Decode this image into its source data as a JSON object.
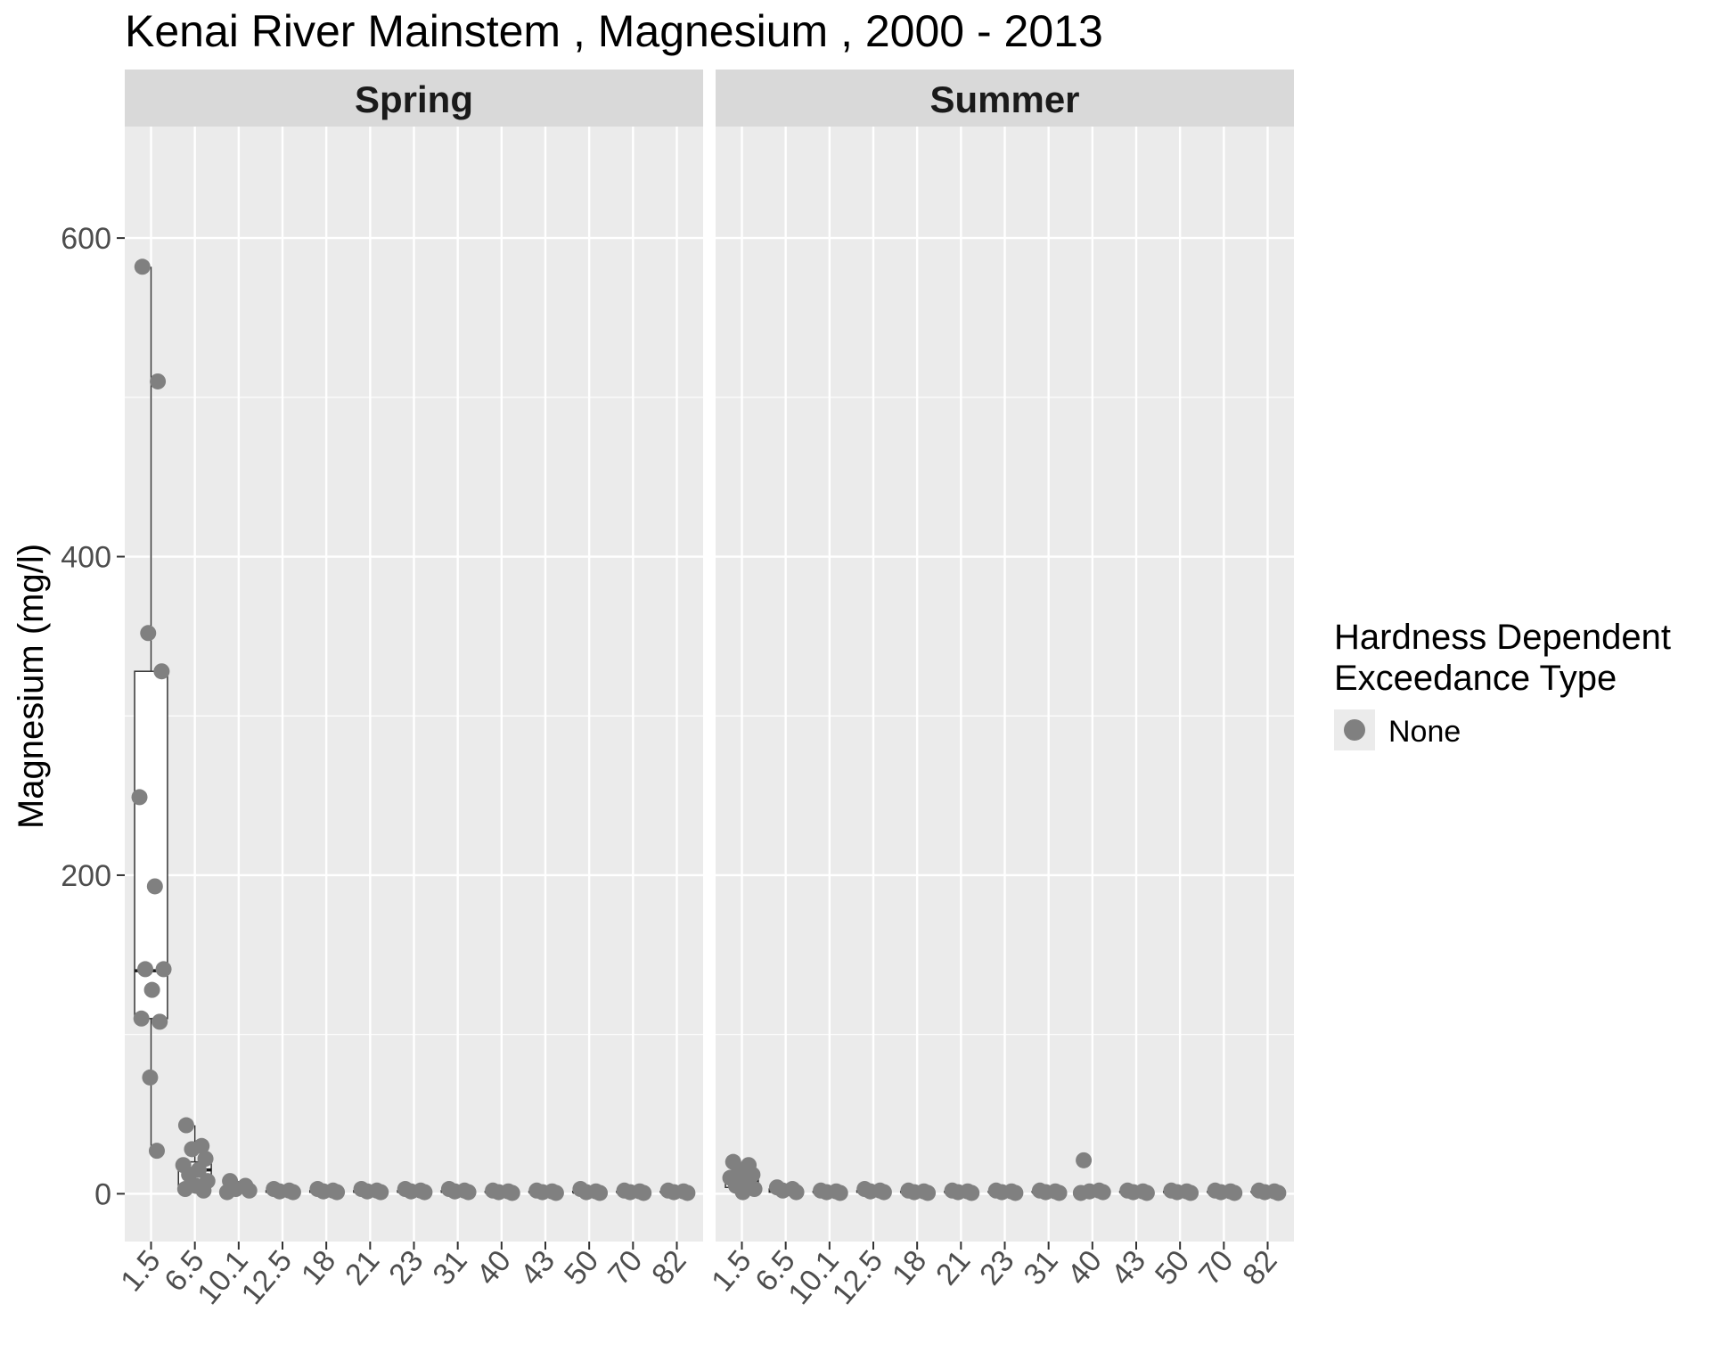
{
  "chart_data": {
    "type": "box",
    "title": "Kenai River Mainstem , Magnesium , 2000 - 2013",
    "xlabel": "",
    "ylabel": "Magnesium (mg/l)",
    "ylim": [
      -30,
      670
    ],
    "y_ticks": [
      0,
      200,
      400,
      600
    ],
    "categories": [
      "1.5",
      "6.5",
      "10.1",
      "12.5",
      "18",
      "21",
      "23",
      "31",
      "40",
      "43",
      "50",
      "70",
      "82"
    ],
    "legend": {
      "title_line1": "Hardness Dependent",
      "title_line2": "Exceedance Type",
      "items": [
        {
          "label": "None",
          "color": "#808080"
        }
      ],
      "position": "right"
    },
    "colors": {
      "panel_bg": "#ebebeb",
      "strip_bg": "#d9d9d9",
      "grid": "#ffffff",
      "point": "#808080",
      "box_fill": "#ffffff",
      "box_line": "#333333"
    },
    "grid": true,
    "facets": [
      {
        "name": "Spring",
        "boxes": [
          {
            "x": "1.5",
            "lower_whisker": 27,
            "q1": 110,
            "median": 140,
            "q3": 328,
            "upper_whisker": 582
          },
          {
            "x": "6.5",
            "lower_whisker": 1,
            "q1": 5,
            "median": 15,
            "q3": 20,
            "upper_whisker": 43
          },
          {
            "x": "10.1",
            "lower_whisker": 0.5,
            "q1": 1,
            "median": 1.5,
            "q3": 3,
            "upper_whisker": 8
          },
          {
            "x": "12.5",
            "lower_whisker": 0.5,
            "q1": 1,
            "median": 1.5,
            "q3": 2,
            "upper_whisker": 3
          },
          {
            "x": "18",
            "lower_whisker": 0.5,
            "q1": 1,
            "median": 1.5,
            "q3": 2,
            "upper_whisker": 3
          },
          {
            "x": "21",
            "lower_whisker": 0.5,
            "q1": 1,
            "median": 1.5,
            "q3": 2,
            "upper_whisker": 3
          },
          {
            "x": "23",
            "lower_whisker": 0.5,
            "q1": 1,
            "median": 1.5,
            "q3": 2,
            "upper_whisker": 3
          },
          {
            "x": "31",
            "lower_whisker": 0.5,
            "q1": 1,
            "median": 1.5,
            "q3": 2,
            "upper_whisker": 3
          },
          {
            "x": "40",
            "lower_whisker": 0.5,
            "q1": 1,
            "median": 1,
            "q3": 1.5,
            "upper_whisker": 2
          },
          {
            "x": "43",
            "lower_whisker": 0.5,
            "q1": 1,
            "median": 1,
            "q3": 1.5,
            "upper_whisker": 2
          },
          {
            "x": "50",
            "lower_whisker": 0.5,
            "q1": 1,
            "median": 1,
            "q3": 1.5,
            "upper_whisker": 3
          },
          {
            "x": "70",
            "lower_whisker": 0.5,
            "q1": 1,
            "median": 1,
            "q3": 1.5,
            "upper_whisker": 2
          },
          {
            "x": "82",
            "lower_whisker": 0.5,
            "q1": 1,
            "median": 1,
            "q3": 1.5,
            "upper_whisker": 2
          }
        ],
        "points": [
          {
            "x": "1.5",
            "y": 582
          },
          {
            "x": "1.5",
            "y": 510
          },
          {
            "x": "1.5",
            "y": 352
          },
          {
            "x": "1.5",
            "y": 328
          },
          {
            "x": "1.5",
            "y": 249
          },
          {
            "x": "1.5",
            "y": 193
          },
          {
            "x": "1.5",
            "y": 141
          },
          {
            "x": "1.5",
            "y": 141
          },
          {
            "x": "1.5",
            "y": 128
          },
          {
            "x": "1.5",
            "y": 110
          },
          {
            "x": "1.5",
            "y": 108
          },
          {
            "x": "1.5",
            "y": 73
          },
          {
            "x": "1.5",
            "y": 27
          },
          {
            "x": "6.5",
            "y": 43
          },
          {
            "x": "6.5",
            "y": 30
          },
          {
            "x": "6.5",
            "y": 28
          },
          {
            "x": "6.5",
            "y": 22
          },
          {
            "x": "6.5",
            "y": 18
          },
          {
            "x": "6.5",
            "y": 15
          },
          {
            "x": "6.5",
            "y": 12
          },
          {
            "x": "6.5",
            "y": 8
          },
          {
            "x": "6.5",
            "y": 5
          },
          {
            "x": "6.5",
            "y": 3
          },
          {
            "x": "6.5",
            "y": 2
          },
          {
            "x": "10.1",
            "y": 8
          },
          {
            "x": "10.1",
            "y": 5
          },
          {
            "x": "10.1",
            "y": 3
          },
          {
            "x": "10.1",
            "y": 2
          },
          {
            "x": "10.1",
            "y": 1
          },
          {
            "x": "12.5",
            "y": 3
          },
          {
            "x": "12.5",
            "y": 2
          },
          {
            "x": "12.5",
            "y": 1.5
          },
          {
            "x": "12.5",
            "y": 1
          },
          {
            "x": "18",
            "y": 3
          },
          {
            "x": "18",
            "y": 2
          },
          {
            "x": "18",
            "y": 1.5
          },
          {
            "x": "18",
            "y": 1
          },
          {
            "x": "21",
            "y": 3
          },
          {
            "x": "21",
            "y": 2
          },
          {
            "x": "21",
            "y": 1.5
          },
          {
            "x": "21",
            "y": 1
          },
          {
            "x": "23",
            "y": 3
          },
          {
            "x": "23",
            "y": 2
          },
          {
            "x": "23",
            "y": 1.5
          },
          {
            "x": "23",
            "y": 1
          },
          {
            "x": "31",
            "y": 3
          },
          {
            "x": "31",
            "y": 2
          },
          {
            "x": "31",
            "y": 1.5
          },
          {
            "x": "31",
            "y": 1
          },
          {
            "x": "40",
            "y": 2
          },
          {
            "x": "40",
            "y": 1.5
          },
          {
            "x": "40",
            "y": 1
          },
          {
            "x": "40",
            "y": 0.5
          },
          {
            "x": "43",
            "y": 2
          },
          {
            "x": "43",
            "y": 1.5
          },
          {
            "x": "43",
            "y": 1
          },
          {
            "x": "43",
            "y": 0.5
          },
          {
            "x": "50",
            "y": 3
          },
          {
            "x": "50",
            "y": 1.5
          },
          {
            "x": "50",
            "y": 1
          },
          {
            "x": "50",
            "y": 0.5
          },
          {
            "x": "70",
            "y": 2
          },
          {
            "x": "70",
            "y": 1.5
          },
          {
            "x": "70",
            "y": 1
          },
          {
            "x": "70",
            "y": 0.5
          },
          {
            "x": "82",
            "y": 2
          },
          {
            "x": "82",
            "y": 1.5
          },
          {
            "x": "82",
            "y": 1
          },
          {
            "x": "82",
            "y": 0.5
          }
        ]
      },
      {
        "name": "Summer",
        "boxes": [
          {
            "x": "1.5",
            "lower_whisker": 1,
            "q1": 4,
            "median": 8,
            "q3": 12,
            "upper_whisker": 20
          },
          {
            "x": "6.5",
            "lower_whisker": 0.5,
            "q1": 1,
            "median": 2,
            "q3": 3,
            "upper_whisker": 4
          },
          {
            "x": "10.1",
            "lower_whisker": 0.5,
            "q1": 1,
            "median": 1,
            "q3": 1.5,
            "upper_whisker": 2
          },
          {
            "x": "12.5",
            "lower_whisker": 0.5,
            "q1": 1,
            "median": 1.5,
            "q3": 2,
            "upper_whisker": 3
          },
          {
            "x": "18",
            "lower_whisker": 0.5,
            "q1": 1,
            "median": 1,
            "q3": 1.5,
            "upper_whisker": 2
          },
          {
            "x": "21",
            "lower_whisker": 0.5,
            "q1": 1,
            "median": 1,
            "q3": 1.5,
            "upper_whisker": 2
          },
          {
            "x": "23",
            "lower_whisker": 0.5,
            "q1": 1,
            "median": 1,
            "q3": 1.5,
            "upper_whisker": 2
          },
          {
            "x": "31",
            "lower_whisker": 0.5,
            "q1": 1,
            "median": 1,
            "q3": 1.5,
            "upper_whisker": 2
          },
          {
            "x": "40",
            "lower_whisker": 0.5,
            "q1": 1,
            "median": 1,
            "q3": 1.5,
            "upper_whisker": 2
          },
          {
            "x": "43",
            "lower_whisker": 0.5,
            "q1": 1,
            "median": 1,
            "q3": 1.5,
            "upper_whisker": 2
          },
          {
            "x": "50",
            "lower_whisker": 0.5,
            "q1": 1,
            "median": 1,
            "q3": 1.5,
            "upper_whisker": 2
          },
          {
            "x": "70",
            "lower_whisker": 0.5,
            "q1": 1,
            "median": 1,
            "q3": 1.5,
            "upper_whisker": 2
          },
          {
            "x": "82",
            "lower_whisker": 0.5,
            "q1": 1,
            "median": 1,
            "q3": 1.5,
            "upper_whisker": 2
          }
        ],
        "points": [
          {
            "x": "1.5",
            "y": 20
          },
          {
            "x": "1.5",
            "y": 18
          },
          {
            "x": "1.5",
            "y": 14
          },
          {
            "x": "1.5",
            "y": 12
          },
          {
            "x": "1.5",
            "y": 10
          },
          {
            "x": "1.5",
            "y": 8
          },
          {
            "x": "1.5",
            "y": 5
          },
          {
            "x": "1.5",
            "y": 3
          },
          {
            "x": "1.5",
            "y": 1
          },
          {
            "x": "6.5",
            "y": 4
          },
          {
            "x": "6.5",
            "y": 3
          },
          {
            "x": "6.5",
            "y": 2
          },
          {
            "x": "6.5",
            "y": 1
          },
          {
            "x": "10.1",
            "y": 2
          },
          {
            "x": "10.1",
            "y": 1.5
          },
          {
            "x": "10.1",
            "y": 1
          },
          {
            "x": "10.1",
            "y": 0.5
          },
          {
            "x": "12.5",
            "y": 3
          },
          {
            "x": "12.5",
            "y": 2
          },
          {
            "x": "12.5",
            "y": 1.5
          },
          {
            "x": "12.5",
            "y": 1
          },
          {
            "x": "18",
            "y": 2
          },
          {
            "x": "18",
            "y": 1.5
          },
          {
            "x": "18",
            "y": 1
          },
          {
            "x": "18",
            "y": 0.5
          },
          {
            "x": "21",
            "y": 2
          },
          {
            "x": "21",
            "y": 1.5
          },
          {
            "x": "21",
            "y": 1
          },
          {
            "x": "21",
            "y": 0.5
          },
          {
            "x": "23",
            "y": 2
          },
          {
            "x": "23",
            "y": 1.5
          },
          {
            "x": "23",
            "y": 1
          },
          {
            "x": "23",
            "y": 0.5
          },
          {
            "x": "31",
            "y": 2
          },
          {
            "x": "31",
            "y": 1.5
          },
          {
            "x": "31",
            "y": 1
          },
          {
            "x": "31",
            "y": 0.5
          },
          {
            "x": "40",
            "y": 21
          },
          {
            "x": "40",
            "y": 2
          },
          {
            "x": "40",
            "y": 1.5
          },
          {
            "x": "40",
            "y": 1
          },
          {
            "x": "40",
            "y": 0.5
          },
          {
            "x": "43",
            "y": 2
          },
          {
            "x": "43",
            "y": 1.5
          },
          {
            "x": "43",
            "y": 1
          },
          {
            "x": "43",
            "y": 0.5
          },
          {
            "x": "50",
            "y": 2
          },
          {
            "x": "50",
            "y": 1.5
          },
          {
            "x": "50",
            "y": 1
          },
          {
            "x": "50",
            "y": 0.5
          },
          {
            "x": "70",
            "y": 2
          },
          {
            "x": "70",
            "y": 1.5
          },
          {
            "x": "70",
            "y": 1
          },
          {
            "x": "70",
            "y": 0.5
          },
          {
            "x": "82",
            "y": 2
          },
          {
            "x": "82",
            "y": 1.5
          },
          {
            "x": "82",
            "y": 1
          },
          {
            "x": "82",
            "y": 0.5
          }
        ]
      }
    ]
  }
}
